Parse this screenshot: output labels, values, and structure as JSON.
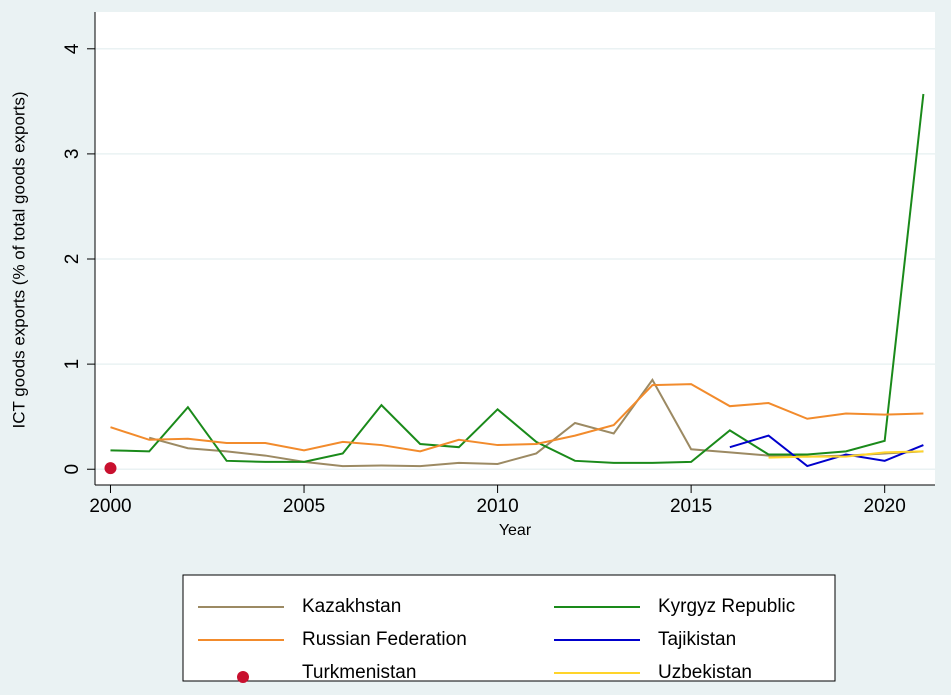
{
  "chart_data": {
    "type": "line",
    "y_label": "ICT goods exports (% of total goods exports)",
    "x_label": "Year",
    "x": [
      2000,
      2001,
      2002,
      2003,
      2004,
      2005,
      2006,
      2007,
      2008,
      2009,
      2010,
      2011,
      2012,
      2013,
      2014,
      2015,
      2016,
      2017,
      2018,
      2019,
      2020,
      2021
    ],
    "series": [
      {
        "name": "Kazakhstan",
        "color": "#9c8a63",
        "style": "line",
        "values": [
          null,
          0.3,
          0.2,
          0.17,
          0.13,
          0.07,
          0.03,
          0.035,
          0.03,
          0.06,
          0.05,
          0.15,
          0.44,
          0.34,
          0.85,
          0.19,
          0.16,
          0.13,
          0.12,
          0.13,
          0.15,
          0.17
        ]
      },
      {
        "name": "Kyrgyz Republic",
        "color": "#1a8a1a",
        "style": "line",
        "values": [
          0.18,
          0.17,
          0.59,
          0.08,
          0.07,
          0.07,
          0.15,
          0.61,
          0.24,
          0.21,
          0.57,
          0.26,
          0.08,
          0.06,
          0.06,
          0.07,
          0.37,
          0.14,
          0.14,
          0.17,
          0.27,
          3.57
        ]
      },
      {
        "name": "Russian Federation",
        "color": "#f28b2c",
        "style": "line",
        "values": [
          0.4,
          0.28,
          0.29,
          0.25,
          0.25,
          0.18,
          0.26,
          0.23,
          0.17,
          0.28,
          0.23,
          0.24,
          0.32,
          0.42,
          0.8,
          0.81,
          0.6,
          0.63,
          0.48,
          0.53,
          0.52,
          0.53
        ]
      },
      {
        "name": "Tajikistan",
        "color": "#0000cc",
        "style": "line",
        "values": [
          null,
          null,
          null,
          null,
          null,
          null,
          null,
          null,
          null,
          null,
          null,
          null,
          null,
          null,
          null,
          null,
          0.21,
          0.32,
          0.03,
          0.14,
          0.08,
          0.23
        ]
      },
      {
        "name": "Turkmenistan",
        "color": "#c8102e",
        "style": "marker",
        "values": [
          0.01,
          null,
          null,
          null,
          null,
          null,
          null,
          null,
          null,
          null,
          null,
          null,
          null,
          null,
          null,
          null,
          null,
          null,
          null,
          null,
          null,
          null
        ]
      },
      {
        "name": "Uzbekistan",
        "color": "#ffd42a",
        "style": "line",
        "values": [
          null,
          null,
          null,
          null,
          null,
          null,
          null,
          null,
          null,
          null,
          null,
          null,
          null,
          null,
          null,
          null,
          null,
          0.11,
          0.12,
          0.12,
          0.16,
          0.17
        ]
      }
    ],
    "xlim": [
      1999.6,
      2021.3
    ],
    "xticks": [
      2000,
      2005,
      2010,
      2015,
      2020
    ],
    "ylim": [
      -0.15,
      4.35
    ],
    "yticks": [
      0,
      1,
      2,
      3,
      4
    ],
    "grid": true
  }
}
